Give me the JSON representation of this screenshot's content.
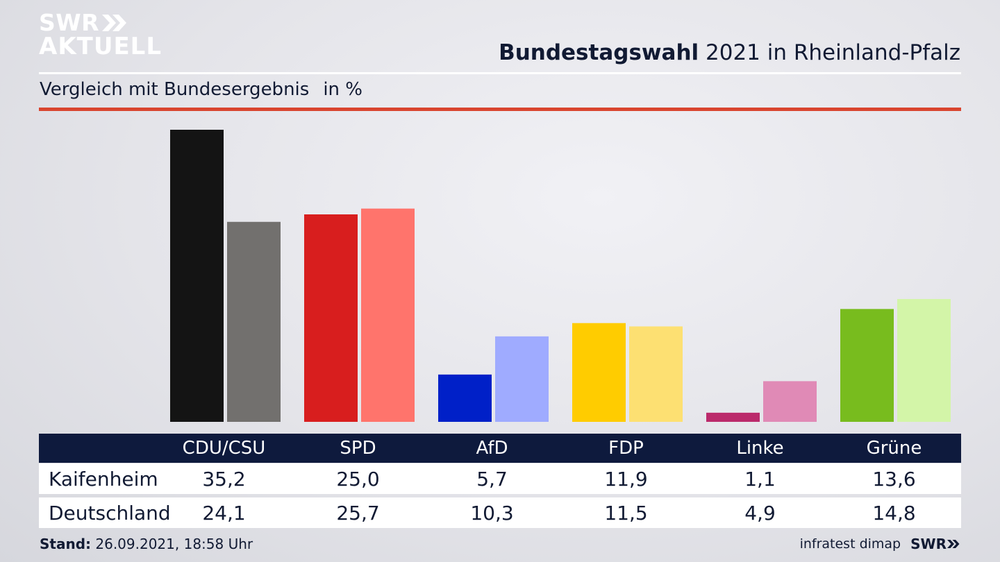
{
  "brand": {
    "top": "SWR",
    "bottom": "AKTUELL",
    "footer_logo": "SWR"
  },
  "header": {
    "title_bold": "Bundestagswahl",
    "title_rest": " 2021 in Rheinland-Pfalz",
    "subtitle": "Vergleich mit Bundesergebnis",
    "unit": "in %"
  },
  "chart_data": {
    "type": "bar",
    "title": "Bundestagswahl 2021 in Rheinland-Pfalz",
    "subtitle": "Vergleich mit Bundesergebnis",
    "unit": "in %",
    "categories": [
      "CDU/CSU",
      "SPD",
      "AfD",
      "FDP",
      "Linke",
      "Grüne"
    ],
    "series": [
      {
        "name": "Kaifenheim",
        "values": [
          35.2,
          25.0,
          5.7,
          11.9,
          1.1,
          13.6
        ],
        "colors": [
          "#141414",
          "#d81e1e",
          "#0020c8",
          "#ffcc00",
          "#bb2a6b",
          "#78bc1e"
        ]
      },
      {
        "name": "Deutschland",
        "values": [
          24.1,
          25.7,
          10.3,
          11.5,
          4.9,
          14.8
        ],
        "colors": [
          "#72706e",
          "#ff746c",
          "#9fabff",
          "#fde072",
          "#e08ab6",
          "#d3f5a8"
        ]
      }
    ],
    "value_labels": {
      "Kaifenheim": [
        "35,2",
        "25,0",
        "5,7",
        "11,9",
        "1,1",
        "13,6"
      ],
      "Deutschland": [
        "24,1",
        "25,7",
        "10,3",
        "11,5",
        "4,9",
        "14,8"
      ]
    },
    "ylim": [
      0,
      35.2
    ],
    "grid": false
  },
  "footer": {
    "stand_label": "Stand:",
    "stand_value": " 26.09.2021, 18:58 Uhr",
    "source": "infratest dimap"
  }
}
